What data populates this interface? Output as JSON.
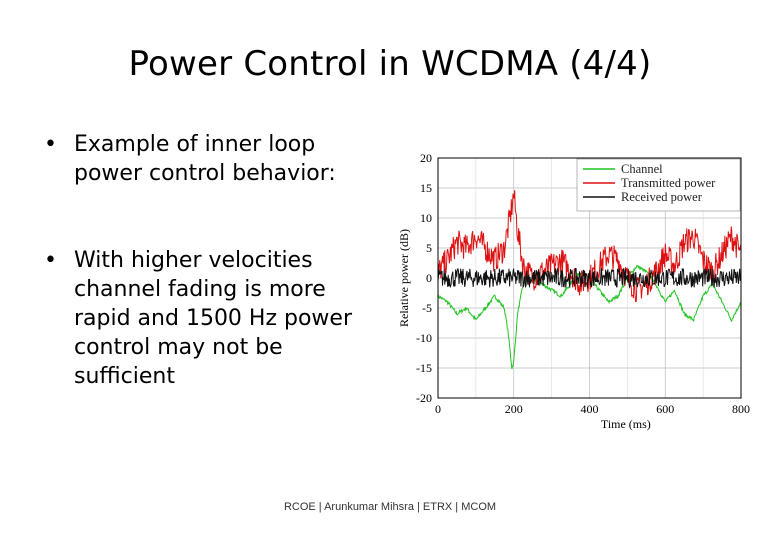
{
  "slide": {
    "title": "Power Control in WCDMA (4/4)",
    "bullets": [
      {
        "marker": "•",
        "text": "Example of inner loop power control behavior:"
      },
      {
        "marker": "•",
        "text": "With higher velocities channel fading is more rapid and 1500 Hz power control may not be sufficient"
      }
    ],
    "footer": "RCOE | Arunkumar Mihsra | ETRX | MCOM"
  },
  "chart_data": {
    "type": "line",
    "title": "",
    "xlabel": "Time (ms)",
    "ylabel": "Relative power (dB)",
    "xlim": [
      0,
      800
    ],
    "ylim": [
      -20,
      20
    ],
    "xticks": [
      0,
      200,
      400,
      600,
      800
    ],
    "yticks": [
      20,
      15,
      10,
      5,
      0,
      -5,
      -10,
      -15,
      -20
    ],
    "grid": true,
    "legend_position": "top-right",
    "series": [
      {
        "name": "Channel",
        "color": "#22c322",
        "x": [
          0,
          25,
          50,
          75,
          100,
          125,
          150,
          175,
          185,
          195,
          200,
          210,
          225,
          250,
          275,
          300,
          325,
          350,
          375,
          400,
          425,
          450,
          475,
          500,
          525,
          550,
          575,
          600,
          625,
          650,
          675,
          700,
          725,
          750,
          775,
          800
        ],
        "y": [
          -3,
          -4,
          -6,
          -5,
          -7,
          -5,
          -3,
          -5,
          -9,
          -15,
          -14,
          -6,
          -1,
          0,
          -1,
          -2,
          -3,
          -1,
          1,
          0,
          -2,
          -4,
          -3,
          0,
          2,
          1,
          -1,
          -4,
          -2,
          -6,
          -7,
          -3,
          -1,
          -4,
          -7,
          -4
        ]
      },
      {
        "name": "Transmitted power",
        "color": "#dd1111",
        "x": [
          0,
          25,
          50,
          75,
          100,
          125,
          150,
          175,
          190,
          200,
          210,
          225,
          250,
          275,
          300,
          325,
          350,
          375,
          400,
          425,
          450,
          475,
          500,
          525,
          550,
          575,
          600,
          625,
          650,
          675,
          700,
          725,
          750,
          775,
          800
        ],
        "y": [
          1,
          3,
          6,
          5,
          7,
          5,
          3,
          5,
          10,
          14,
          8,
          2,
          0,
          1,
          2,
          3,
          1,
          -1,
          0,
          2,
          4,
          3,
          0,
          -2,
          -1,
          1,
          4,
          2,
          6,
          7,
          3,
          1,
          4,
          7,
          4
        ]
      },
      {
        "name": "Received power",
        "color": "#111111",
        "x": [
          0,
          100,
          200,
          300,
          400,
          500,
          600,
          700,
          800
        ],
        "y": [
          0,
          0,
          0,
          0,
          0,
          0,
          0,
          0,
          0
        ]
      }
    ]
  }
}
